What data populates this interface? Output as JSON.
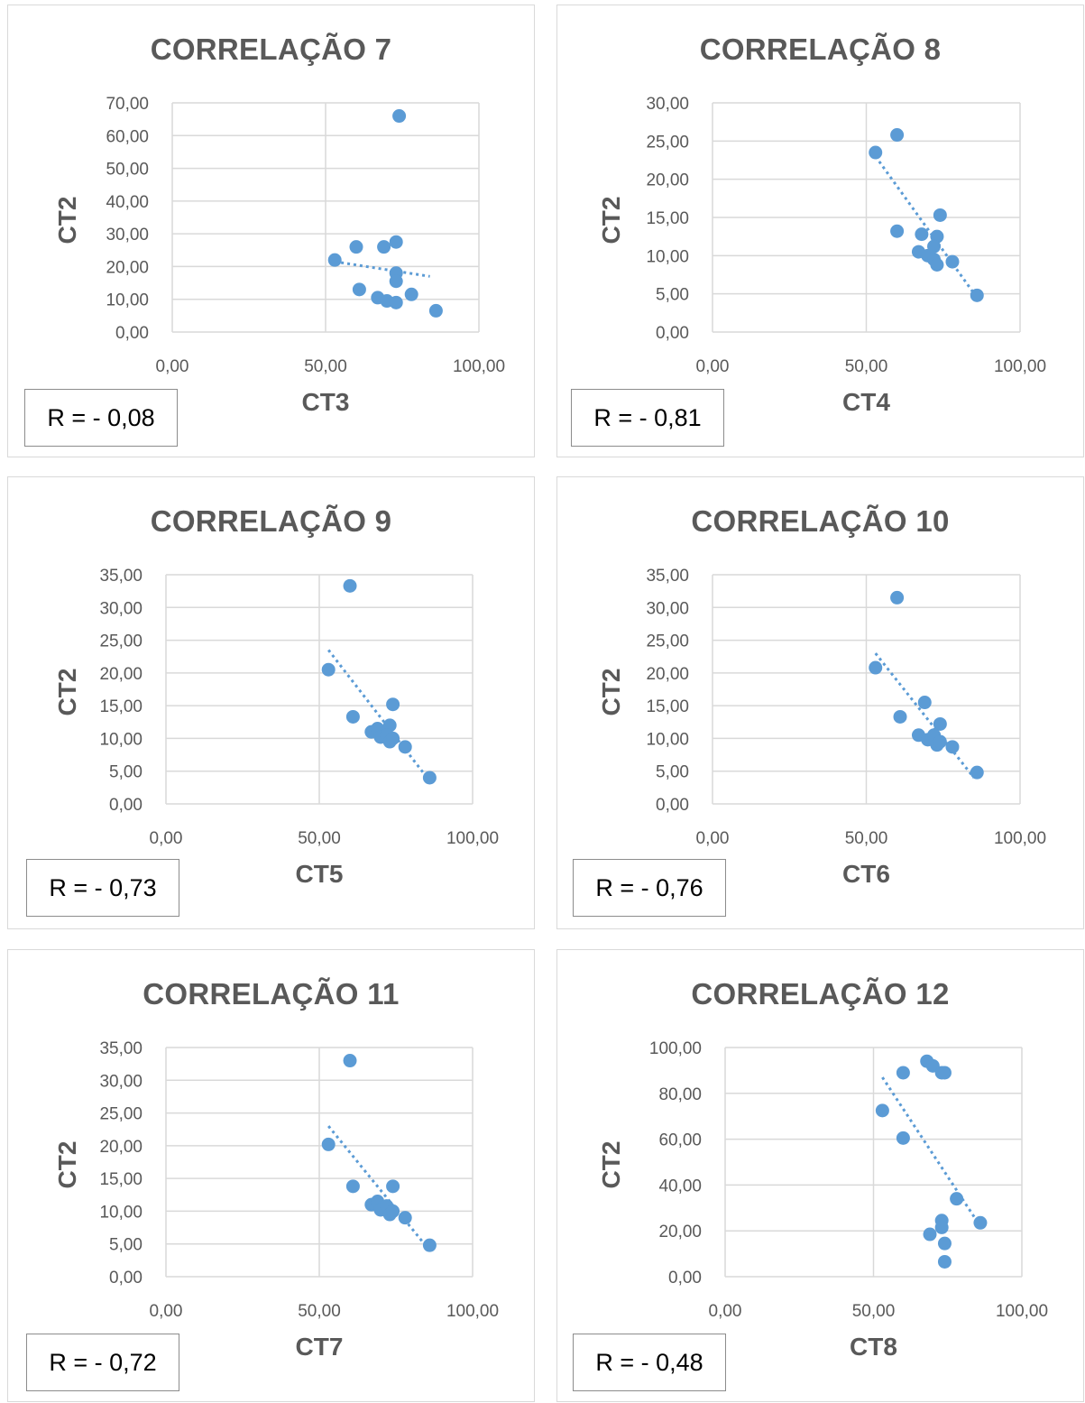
{
  "charts": [
    {
      "title": "CORRELAÇÃO 7",
      "xlabel": "CT3",
      "ylabel": "CT2",
      "r_label": "R = - 0,08",
      "xticks": [
        "0,00",
        "50,00",
        "100,00"
      ],
      "yticks": [
        "0,00",
        "10,00",
        "20,00",
        "30,00",
        "40,00",
        "50,00",
        "60,00",
        "70,00"
      ],
      "xlim": [
        0,
        100
      ],
      "ylim": [
        0,
        70
      ],
      "trend": [
        [
          53,
          21.5
        ],
        [
          84,
          17
        ]
      ],
      "points": [
        [
          74,
          66
        ],
        [
          60,
          26
        ],
        [
          69,
          26
        ],
        [
          73,
          27.5
        ],
        [
          53,
          22
        ],
        [
          73,
          18
        ],
        [
          73,
          15.5
        ],
        [
          61,
          13
        ],
        [
          67,
          10.5
        ],
        [
          70,
          9.5
        ],
        [
          73,
          9
        ],
        [
          78,
          11.5
        ],
        [
          86,
          6.5
        ]
      ]
    },
    {
      "title": "CORRELAÇÃO 8",
      "xlabel": "CT4",
      "ylabel": "CT2",
      "r_label": "R = - 0,81",
      "xticks": [
        "0,00",
        "50,00",
        "100,00"
      ],
      "yticks": [
        "0,00",
        "5,00",
        "10,00",
        "15,00",
        "20,00",
        "25,00",
        "30,00"
      ],
      "xlim": [
        0,
        100
      ],
      "ylim": [
        0,
        30
      ],
      "trend": [
        [
          53,
          23
        ],
        [
          86,
          4.5
        ]
      ],
      "points": [
        [
          53,
          23.5
        ],
        [
          60,
          25.8
        ],
        [
          60,
          13.2
        ],
        [
          68,
          12.8
        ],
        [
          73,
          12.5
        ],
        [
          74,
          15.3
        ],
        [
          72,
          11.2
        ],
        [
          67,
          10.5
        ],
        [
          70,
          10
        ],
        [
          72,
          9.5
        ],
        [
          73,
          8.8
        ],
        [
          78,
          9.2
        ],
        [
          86,
          4.8
        ]
      ]
    },
    {
      "title": "CORRELAÇÃO 9",
      "xlabel": "CT5",
      "ylabel": "CT2",
      "r_label": "R = - 0,73",
      "xticks": [
        "0,00",
        "50,00",
        "100,00"
      ],
      "yticks": [
        "0,00",
        "5,00",
        "10,00",
        "15,00",
        "20,00",
        "25,00",
        "30,00",
        "35,00"
      ],
      "xlim": [
        0,
        100
      ],
      "ylim": [
        0,
        35
      ],
      "trend": [
        [
          53,
          23.5
        ],
        [
          86,
          3.5
        ]
      ],
      "points": [
        [
          60,
          33.3
        ],
        [
          53,
          20.5
        ],
        [
          61,
          13.3
        ],
        [
          74,
          15.2
        ],
        [
          73,
          12
        ],
        [
          67,
          11
        ],
        [
          69,
          11.5
        ],
        [
          70,
          10.2
        ],
        [
          72,
          10.5
        ],
        [
          73,
          9.5
        ],
        [
          74,
          10
        ],
        [
          78,
          8.7
        ],
        [
          86,
          4
        ]
      ]
    },
    {
      "title": "CORRELAÇÃO 10",
      "xlabel": "CT6",
      "ylabel": "CT2",
      "r_label": "R = - 0,76",
      "xticks": [
        "0,00",
        "50,00",
        "100,00"
      ],
      "yticks": [
        "0,00",
        "5,00",
        "10,00",
        "15,00",
        "20,00",
        "25,00",
        "30,00",
        "35,00"
      ],
      "xlim": [
        0,
        100
      ],
      "ylim": [
        0,
        35
      ],
      "trend": [
        [
          53,
          23
        ],
        [
          85,
          4
        ]
      ],
      "points": [
        [
          60,
          31.5
        ],
        [
          53,
          20.8
        ],
        [
          61,
          13.3
        ],
        [
          69,
          15.5
        ],
        [
          74,
          12.2
        ],
        [
          67,
          10.5
        ],
        [
          70,
          9.8
        ],
        [
          72,
          10.5
        ],
        [
          73,
          9
        ],
        [
          74,
          9.5
        ],
        [
          78,
          8.7
        ],
        [
          86,
          4.8
        ]
      ]
    },
    {
      "title": "CORRELAÇÃO 11",
      "xlabel": "CT7",
      "ylabel": "CT2",
      "r_label": "R = - 0,72",
      "xticks": [
        "0,00",
        "50,00",
        "100,00"
      ],
      "yticks": [
        "0,00",
        "5,00",
        "10,00",
        "15,00",
        "20,00",
        "25,00",
        "30,00",
        "35,00"
      ],
      "xlim": [
        0,
        100
      ],
      "ylim": [
        0,
        35
      ],
      "trend": [
        [
          53,
          23
        ],
        [
          86,
          4
        ]
      ],
      "points": [
        [
          60,
          33
        ],
        [
          53,
          20.2
        ],
        [
          61,
          13.8
        ],
        [
          74,
          13.8
        ],
        [
          67,
          11
        ],
        [
          69,
          11.5
        ],
        [
          70,
          10.2
        ],
        [
          72,
          10.8
        ],
        [
          73,
          9.5
        ],
        [
          74,
          10
        ],
        [
          78,
          9
        ],
        [
          86,
          4.8
        ]
      ]
    },
    {
      "title": "CORRELAÇÃO 12",
      "xlabel": "CT8",
      "ylabel": "CT2",
      "r_label": "R = - 0,48",
      "xticks": [
        "0,00",
        "50,00",
        "100,00"
      ],
      "yticks": [
        "0,00",
        "20,00",
        "40,00",
        "60,00",
        "80,00",
        "100,00"
      ],
      "xlim": [
        0,
        100
      ],
      "ylim": [
        0,
        100
      ],
      "trend": [
        [
          53,
          87
        ],
        [
          86,
          22
        ]
      ],
      "points": [
        [
          68,
          94
        ],
        [
          70,
          92
        ],
        [
          60,
          89
        ],
        [
          73,
          89
        ],
        [
          74,
          89
        ],
        [
          53,
          72.5
        ],
        [
          60,
          60.5
        ],
        [
          78,
          34
        ],
        [
          86,
          23.5
        ],
        [
          73,
          24.5
        ],
        [
          73,
          21.5
        ],
        [
          69,
          18.5
        ],
        [
          74,
          14.5
        ],
        [
          74,
          6.5
        ]
      ]
    }
  ],
  "colors": {
    "marker": "#5b9bd5",
    "trend": "#5b9bd5",
    "grid": "#d9d9d9",
    "text": "#595959",
    "border": "#d9d9d9"
  }
}
